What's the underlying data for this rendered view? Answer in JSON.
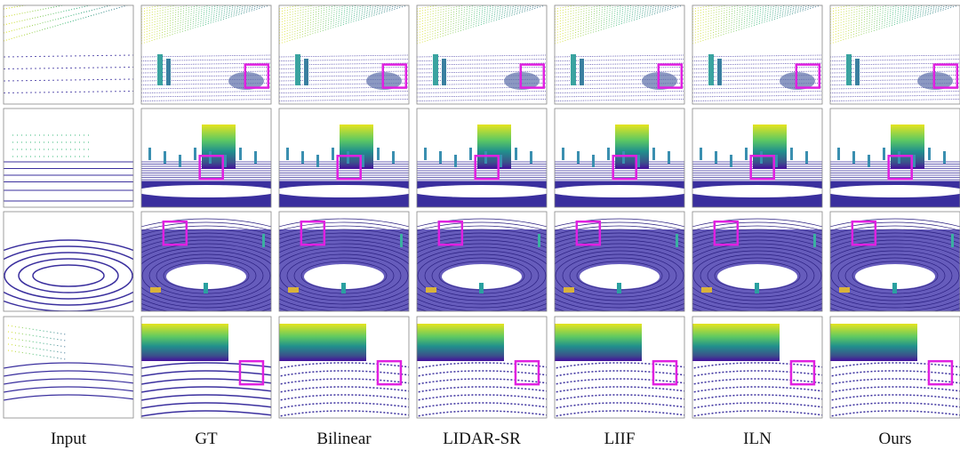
{
  "columns": [
    "Input",
    "GT",
    "Bilinear",
    "LIDAR-SR",
    "LIIF",
    "ILN",
    "Ours"
  ]
}
